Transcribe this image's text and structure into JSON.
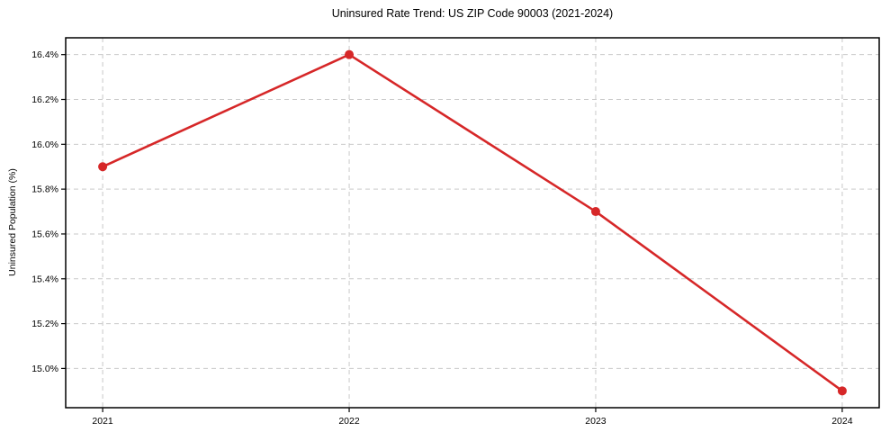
{
  "chart_data": {
    "type": "line",
    "title": "Uninsured Rate Trend: US ZIP Code 90003 (2021-2024)",
    "xlabel": "",
    "ylabel": "Uninsured Population (%)",
    "x": [
      2021,
      2022,
      2023,
      2024
    ],
    "values": [
      15.9,
      16.4,
      15.7,
      14.9
    ],
    "x_tick_labels": [
      "2021",
      "2022",
      "2023",
      "2024"
    ],
    "y_ticks": [
      15.0,
      15.2,
      15.4,
      15.6,
      15.8,
      16.0,
      16.2,
      16.4
    ],
    "y_tick_labels": [
      "15.0%",
      "15.2%",
      "15.4%",
      "15.6%",
      "15.8%",
      "16.0%",
      "16.2%",
      "16.4%"
    ],
    "xlim": [
      2020.85,
      2024.15
    ],
    "ylim": [
      14.825,
      16.475
    ],
    "grid": true,
    "grid_style": "dashed",
    "legend": false,
    "marker": "circle",
    "line_color": "#d62728",
    "grid_color": "#c9c9c9",
    "axis_color": "#000000",
    "background": "#ffffff"
  }
}
